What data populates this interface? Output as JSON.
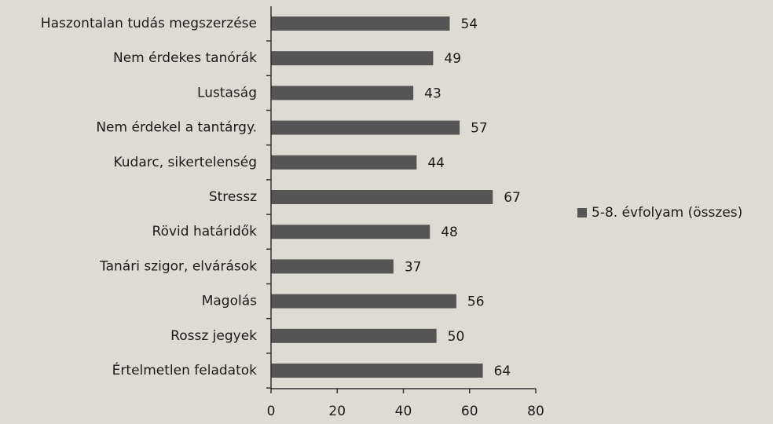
{
  "chart_data": {
    "type": "bar",
    "orientation": "horizontal",
    "categories": [
      "Haszontalan tudás megszerzése",
      "Nem érdekes tanórák",
      "Lustaság",
      "Nem érdekel a tantárgy.",
      "Kudarc, sikertelenség",
      "Stressz",
      "Rövid határidők",
      "Tanári szigor, elvárások",
      "Magolás",
      "Rossz jegyek",
      "Értelmetlen feladatok"
    ],
    "series": [
      {
        "name": "5-8. évfolyam (összes)",
        "color": "#555555",
        "values": [
          54,
          49,
          43,
          57,
          44,
          67,
          48,
          37,
          56,
          50,
          64
        ]
      }
    ],
    "xlim": [
      0,
      80
    ],
    "xticks": [
      0,
      20,
      40,
      60,
      80
    ],
    "legend": "right"
  }
}
